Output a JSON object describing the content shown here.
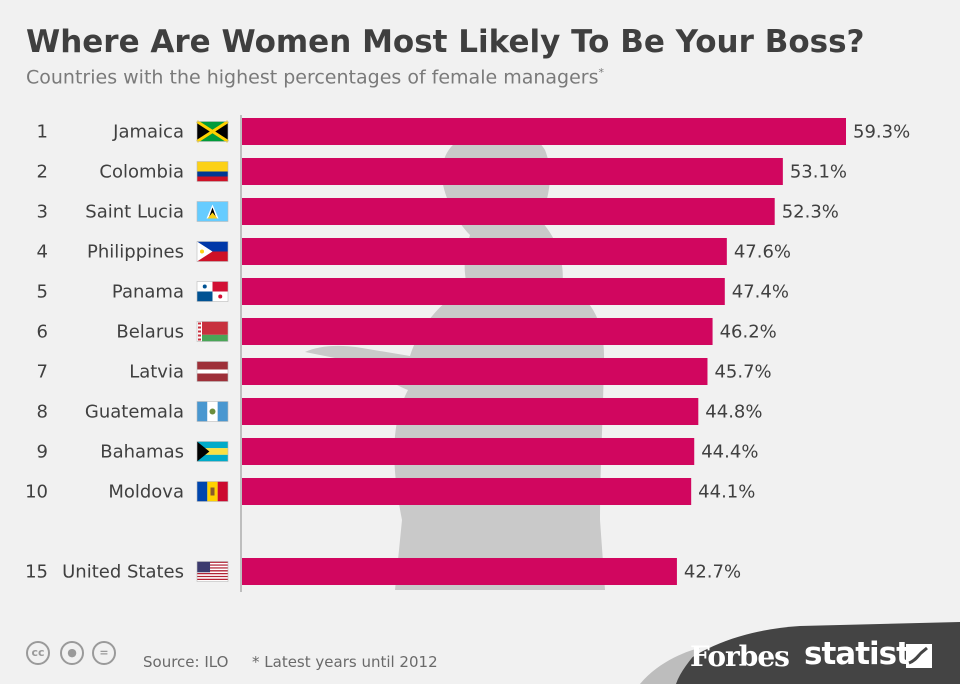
{
  "header": {
    "title": "Where Are Women Most Likely To Be Your Boss?",
    "subtitle": "Countries with the highest percentages of female managers",
    "subtitle_mark": "*"
  },
  "chart_data": {
    "type": "bar",
    "orientation": "horizontal",
    "title": "Where Are Women Most Likely To Be Your Boss?",
    "subtitle": "Countries with the highest percentages of female managers*",
    "unit": "%",
    "xlim": [
      0,
      59.3
    ],
    "grid": false,
    "bar_color": "#d1065f",
    "rows": [
      {
        "rank": "1",
        "country": "Jamaica",
        "flag": "jamaica-flag-icon",
        "value": 59.3,
        "label": "59.3%"
      },
      {
        "rank": "2",
        "country": "Colombia",
        "flag": "colombia-flag-icon",
        "value": 53.1,
        "label": "53.1%"
      },
      {
        "rank": "3",
        "country": "Saint Lucia",
        "flag": "saint-lucia-flag-icon",
        "value": 52.3,
        "label": "52.3%"
      },
      {
        "rank": "4",
        "country": "Philippines",
        "flag": "philippines-flag-icon",
        "value": 47.6,
        "label": "47.6%"
      },
      {
        "rank": "5",
        "country": "Panama",
        "flag": "panama-flag-icon",
        "value": 47.4,
        "label": "47.4%"
      },
      {
        "rank": "6",
        "country": "Belarus",
        "flag": "belarus-flag-icon",
        "value": 46.2,
        "label": "46.2%"
      },
      {
        "rank": "7",
        "country": "Latvia",
        "flag": "latvia-flag-icon",
        "value": 45.7,
        "label": "45.7%"
      },
      {
        "rank": "8",
        "country": "Guatemala",
        "flag": "guatemala-flag-icon",
        "value": 44.8,
        "label": "44.8%"
      },
      {
        "rank": "9",
        "country": "Bahamas",
        "flag": "bahamas-flag-icon",
        "value": 44.4,
        "label": "44.4%"
      },
      {
        "rank": "10",
        "country": "Moldova",
        "flag": "moldova-flag-icon",
        "value": 44.1,
        "label": "44.1%"
      },
      {
        "rank": "15",
        "country": "United States",
        "flag": "united-states-flag-icon",
        "value": 42.7,
        "label": "42.7%"
      }
    ]
  },
  "footer": {
    "source": "Source: ILO",
    "note": "* Latest years until 2012",
    "license_icons": [
      "cc-icon",
      "attribution-icon",
      "no-derivatives-icon"
    ],
    "brand_forbes": "Forbes",
    "brand_statista": "statista"
  },
  "colors": {
    "background": "#f1f1f1",
    "bar": "#d1065f",
    "title": "#3f3f3f",
    "subtitle": "#7a7a7a",
    "silhouette": "#c7c7c7",
    "footer_band": "#444444"
  }
}
